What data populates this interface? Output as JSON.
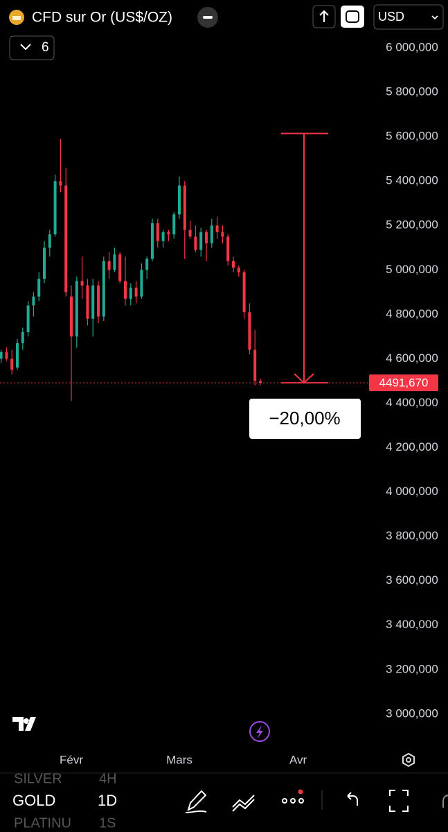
{
  "header": {
    "title": "CFD sur Or (US$/OZ)",
    "interval_count": "6",
    "currency": "USD"
  },
  "chart_data": {
    "type": "candlestick",
    "categories": [
      null,
      null,
      null,
      null,
      null,
      null,
      null,
      null,
      null,
      null,
      null,
      null,
      null,
      "Févr",
      null,
      null,
      null,
      null,
      null,
      null,
      null,
      null,
      null,
      null,
      null,
      null,
      null,
      null,
      null,
      null,
      null,
      null,
      null,
      "Mars",
      null,
      null,
      null,
      null,
      null,
      null,
      null,
      null,
      null,
      null,
      null,
      null,
      null,
      null,
      null,
      null,
      null,
      null,
      null,
      null,
      null,
      "Avr"
    ],
    "open": [
      4600,
      4630,
      4600,
      4560,
      4670,
      4720,
      4840,
      4880,
      4960,
      5100,
      5160,
      5400,
      5380,
      4880,
      4700,
      4950,
      4930,
      4780,
      4930,
      4790,
      5040,
      5000,
      5070,
      4950,
      4870,
      4920,
      4880,
      5000,
      5050,
      5210,
      5130,
      5170,
      5160,
      5250,
      5380,
      5180,
      5150,
      5090,
      5170,
      5120,
      5200,
      5170,
      5150,
      5040,
      5010,
      4990,
      4810,
      4640,
      4500,
      null,
      null,
      null,
      null,
      null,
      null,
      null
    ],
    "high": [
      4640,
      4650,
      4640,
      4690,
      4740,
      4860,
      4900,
      4990,
      5130,
      5180,
      5430,
      5590,
      5460,
      4930,
      4970,
      5060,
      4960,
      4960,
      4950,
      5060,
      5080,
      5100,
      5080,
      5060,
      4940,
      4950,
      5030,
      5060,
      5230,
      5230,
      5180,
      5180,
      5260,
      5420,
      5400,
      5220,
      5200,
      5190,
      5180,
      5230,
      5240,
      5200,
      5160,
      5060,
      5020,
      5000,
      4850,
      4730,
      4510,
      null,
      null,
      null,
      null,
      null,
      null,
      null
    ],
    "low": [
      4580,
      4590,
      4530,
      4550,
      4640,
      4700,
      4790,
      4860,
      4940,
      5060,
      5150,
      5350,
      4880,
      4410,
      4650,
      4870,
      4750,
      4700,
      4760,
      4770,
      4960,
      4990,
      4940,
      4840,
      4840,
      4850,
      4870,
      4960,
      5040,
      5100,
      5100,
      5130,
      5140,
      5230,
      5050,
      5140,
      5080,
      5060,
      5040,
      5100,
      5140,
      5120,
      5020,
      4990,
      4970,
      4780,
      4620,
      4480,
      4480,
      null,
      null,
      null,
      null,
      null,
      null,
      null
    ],
    "close": [
      4630,
      4600,
      4550,
      4670,
      4720,
      4840,
      4880,
      4960,
      5100,
      5160,
      5400,
      5380,
      4900,
      4700,
      4950,
      4930,
      4780,
      4930,
      4790,
      5040,
      5000,
      5070,
      4950,
      4870,
      4920,
      4880,
      5000,
      5050,
      5210,
      5130,
      5170,
      5160,
      5250,
      5380,
      5180,
      5150,
      5090,
      5170,
      5120,
      5200,
      5170,
      5150,
      5040,
      5010,
      4990,
      4810,
      4640,
      4500,
      4491.67,
      null,
      null,
      null,
      null,
      null,
      null,
      null
    ],
    "up_color": "#22ab94",
    "down_color": "#f23645",
    "ylim": [
      2859,
      6075
    ],
    "yticks": [
      {
        "value": 3000,
        "label": "3 000,000"
      },
      {
        "value": 3200,
        "label": "3 200,000"
      },
      {
        "value": 3400,
        "label": "3 400,000"
      },
      {
        "value": 3600,
        "label": "3 600,000"
      },
      {
        "value": 3800,
        "label": "3 800,000"
      },
      {
        "value": 4000,
        "label": "4 000,000"
      },
      {
        "value": 4200,
        "label": "4 200,000"
      },
      {
        "value": 4400,
        "label": "4 400,000"
      },
      {
        "value": 4600,
        "label": "4 600,000"
      },
      {
        "value": 4800,
        "label": "4 800,000"
      },
      {
        "value": 5000,
        "label": "5 000,000"
      },
      {
        "value": 5200,
        "label": "5 200,000"
      },
      {
        "value": 5400,
        "label": "5 400,000"
      },
      {
        "value": 5600,
        "label": "5 600,000"
      },
      {
        "value": 5800,
        "label": "5 800,000"
      },
      {
        "value": 6000,
        "label": "6 000,000"
      }
    ],
    "last_price": {
      "value": 4491.67,
      "label": "4491,670"
    },
    "measure": {
      "from": 5614.59,
      "to": 4491.67,
      "label": "−20,00%"
    }
  },
  "toolbar": {
    "symbols": [
      "SILVER",
      "GOLD",
      "PLATINU"
    ],
    "intervals": [
      "4H",
      "1D",
      "1S"
    ]
  }
}
